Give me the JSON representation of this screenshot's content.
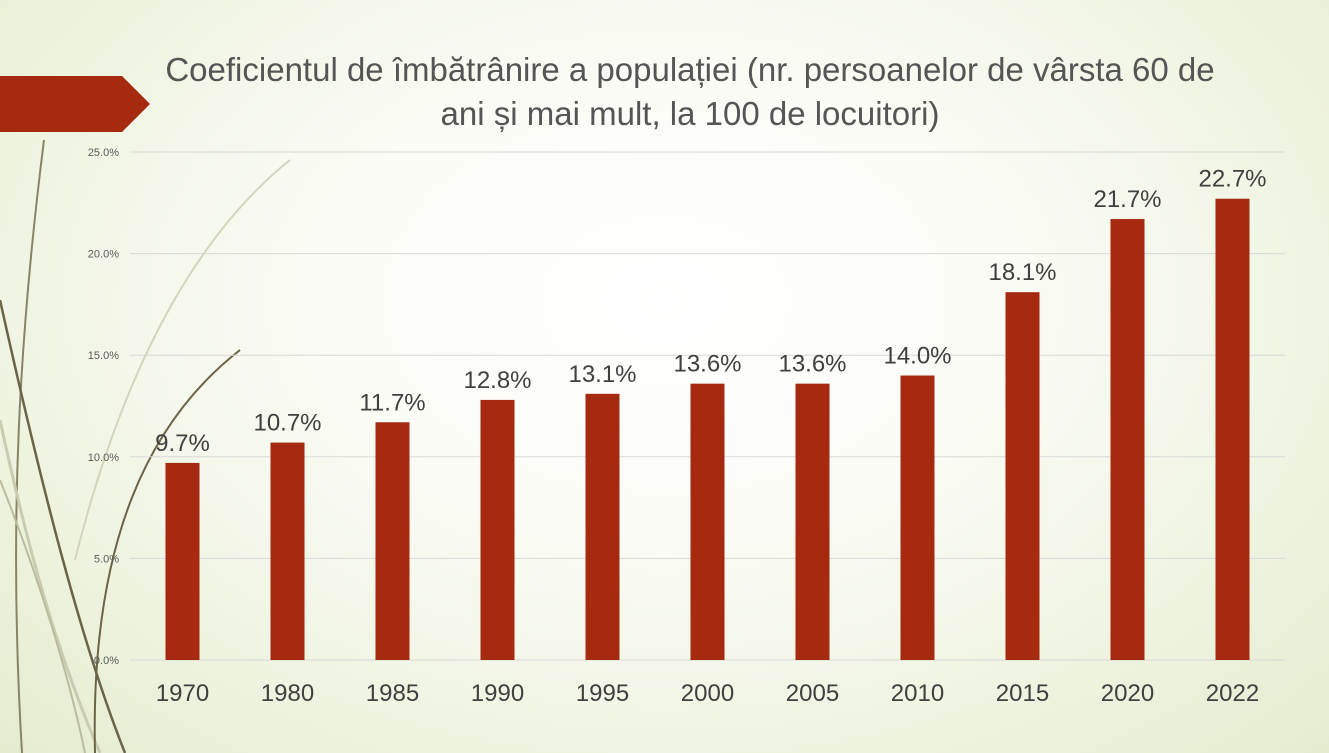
{
  "colors": {
    "bar": "#a52a0f",
    "ribbon": "#a52a0f",
    "grid": "#d9d9d9",
    "curve": "#6b6448",
    "curve_light": "#c9ccb0"
  },
  "chart_data": {
    "type": "bar",
    "title": "Coeficientul de îmbătrânire a populației (nr. persoanelor de vârsta 60 de ani și mai mult, la 100 de locuitori)",
    "xlabel": "",
    "ylabel": "",
    "categories": [
      "1970",
      "1980",
      "1985",
      "1990",
      "1995",
      "2000",
      "2005",
      "2010",
      "2015",
      "2020",
      "2022"
    ],
    "values": [
      9.7,
      10.7,
      11.7,
      12.8,
      13.1,
      13.6,
      13.6,
      14.0,
      18.1,
      21.7,
      22.7
    ],
    "data_labels": [
      "9.7%",
      "10.7%",
      "11.7%",
      "12.8%",
      "13.1%",
      "13.6%",
      "13.6%",
      "14.0%",
      "18.1%",
      "21.7%",
      "22.7%"
    ],
    "ylim": [
      0,
      25
    ],
    "yticks": [
      0,
      5,
      10,
      15,
      20,
      25
    ],
    "ytick_labels": [
      "0.0%",
      "5.0%",
      "10.0%",
      "15.0%",
      "20.0%",
      "25.0%"
    ],
    "grid": true,
    "legend": "none"
  }
}
